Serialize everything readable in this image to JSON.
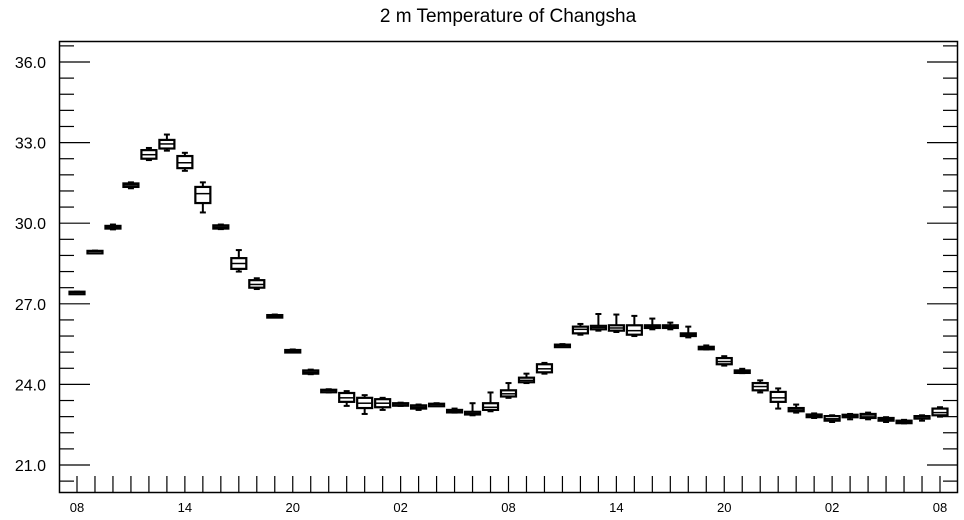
{
  "chart_data": {
    "type": "boxplot",
    "title": "2 m Temperature of Changsha",
    "xlabel": "",
    "ylabel": "",
    "ylim": [
      20.0,
      36.8
    ],
    "y_ticks": [
      "21.0",
      "24.0",
      "27.0",
      "30.0",
      "33.0",
      "36.0"
    ],
    "y_tick_values": [
      21.0,
      24.0,
      27.0,
      30.0,
      33.0,
      36.0
    ],
    "x_hours_start": 8,
    "x_hours_end": 56,
    "x_tick_hours": [
      8,
      14,
      20,
      26,
      32,
      38,
      44,
      50,
      56
    ],
    "x_tick_labels": [
      "08",
      "14",
      "20",
      "02",
      "08",
      "14",
      "20",
      "02",
      "08"
    ],
    "boxes": [
      {
        "hour": 8,
        "min": 27.4,
        "q1": 27.4,
        "median": 27.42,
        "q3": 27.45,
        "max": 27.45
      },
      {
        "hour": 9,
        "min": 28.9,
        "q1": 28.93,
        "median": 28.95,
        "q3": 28.97,
        "max": 28.98
      },
      {
        "hour": 10,
        "min": 29.77,
        "q1": 29.8,
        "median": 29.85,
        "q3": 29.9,
        "max": 29.95
      },
      {
        "hour": 11,
        "min": 31.3,
        "q1": 31.35,
        "median": 31.42,
        "q3": 31.48,
        "max": 31.52
      },
      {
        "hour": 12,
        "min": 32.35,
        "q1": 32.4,
        "median": 32.55,
        "q3": 32.72,
        "max": 32.8
      },
      {
        "hour": 13,
        "min": 32.7,
        "q1": 32.78,
        "median": 32.95,
        "q3": 33.1,
        "max": 33.3
      },
      {
        "hour": 14,
        "min": 31.95,
        "q1": 32.05,
        "median": 32.25,
        "q3": 32.5,
        "max": 32.62
      },
      {
        "hour": 15,
        "min": 30.4,
        "q1": 30.75,
        "median": 31.1,
        "q3": 31.35,
        "max": 31.52
      },
      {
        "hour": 16,
        "min": 29.78,
        "q1": 29.8,
        "median": 29.85,
        "q3": 29.92,
        "max": 29.95
      },
      {
        "hour": 17,
        "min": 28.2,
        "q1": 28.3,
        "median": 28.5,
        "q3": 28.7,
        "max": 29.0
      },
      {
        "hour": 18,
        "min": 27.55,
        "q1": 27.6,
        "median": 27.72,
        "q3": 27.88,
        "max": 27.95
      },
      {
        "hour": 19,
        "min": 26.5,
        "q1": 26.52,
        "median": 26.55,
        "q3": 26.58,
        "max": 26.6
      },
      {
        "hour": 20,
        "min": 25.2,
        "q1": 25.22,
        "median": 25.25,
        "q3": 25.28,
        "max": 25.3
      },
      {
        "hour": 21,
        "min": 24.38,
        "q1": 24.4,
        "median": 24.45,
        "q3": 24.52,
        "max": 24.55
      },
      {
        "hour": 22,
        "min": 23.7,
        "q1": 23.72,
        "median": 23.77,
        "q3": 23.8,
        "max": 23.82
      },
      {
        "hour": 23,
        "min": 23.2,
        "q1": 23.35,
        "median": 23.5,
        "q3": 23.68,
        "max": 23.75
      },
      {
        "hour": 24,
        "min": 22.9,
        "q1": 23.12,
        "median": 23.3,
        "q3": 23.5,
        "max": 23.6
      },
      {
        "hour": 25,
        "min": 23.05,
        "q1": 23.15,
        "median": 23.3,
        "q3": 23.45,
        "max": 23.5
      },
      {
        "hour": 26,
        "min": 23.2,
        "q1": 23.22,
        "median": 23.27,
        "q3": 23.3,
        "max": 23.32
      },
      {
        "hour": 27,
        "min": 23.05,
        "q1": 23.1,
        "median": 23.15,
        "q3": 23.22,
        "max": 23.25
      },
      {
        "hour": 28,
        "min": 23.2,
        "q1": 23.22,
        "median": 23.25,
        "q3": 23.28,
        "max": 23.3
      },
      {
        "hour": 29,
        "min": 22.95,
        "q1": 22.98,
        "median": 23.0,
        "q3": 23.05,
        "max": 23.1
      },
      {
        "hour": 30,
        "min": 22.85,
        "q1": 22.88,
        "median": 22.92,
        "q3": 22.98,
        "max": 23.3
      },
      {
        "hour": 31,
        "min": 23.0,
        "q1": 23.05,
        "median": 23.15,
        "q3": 23.3,
        "max": 23.7
      },
      {
        "hour": 32,
        "min": 23.5,
        "q1": 23.55,
        "median": 23.65,
        "q3": 23.78,
        "max": 24.05
      },
      {
        "hour": 33,
        "min": 24.05,
        "q1": 24.08,
        "median": 24.15,
        "q3": 24.25,
        "max": 24.4
      },
      {
        "hour": 34,
        "min": 24.4,
        "q1": 24.45,
        "median": 24.58,
        "q3": 24.75,
        "max": 24.8
      },
      {
        "hour": 35,
        "min": 25.4,
        "q1": 25.42,
        "median": 25.45,
        "q3": 25.48,
        "max": 25.5
      },
      {
        "hour": 36,
        "min": 25.85,
        "q1": 25.9,
        "median": 26.05,
        "q3": 26.15,
        "max": 26.25
      },
      {
        "hour": 37,
        "min": 26.0,
        "q1": 26.05,
        "median": 26.12,
        "q3": 26.18,
        "max": 26.62
      },
      {
        "hour": 38,
        "min": 25.95,
        "q1": 26.0,
        "median": 26.1,
        "q3": 26.2,
        "max": 26.6
      },
      {
        "hour": 39,
        "min": 25.8,
        "q1": 25.85,
        "median": 26.0,
        "q3": 26.2,
        "max": 26.55
      },
      {
        "hour": 40,
        "min": 26.05,
        "q1": 26.1,
        "median": 26.15,
        "q3": 26.2,
        "max": 26.45
      },
      {
        "hour": 41,
        "min": 26.05,
        "q1": 26.1,
        "median": 26.15,
        "q3": 26.2,
        "max": 26.3
      },
      {
        "hour": 42,
        "min": 25.75,
        "q1": 25.8,
        "median": 25.85,
        "q3": 25.9,
        "max": 26.15
      },
      {
        "hour": 43,
        "min": 25.3,
        "q1": 25.32,
        "median": 25.35,
        "q3": 25.4,
        "max": 25.45
      },
      {
        "hour": 44,
        "min": 24.7,
        "q1": 24.75,
        "median": 24.85,
        "q3": 24.98,
        "max": 25.05
      },
      {
        "hour": 45,
        "min": 24.42,
        "q1": 24.45,
        "median": 24.48,
        "q3": 24.52,
        "max": 24.58
      },
      {
        "hour": 46,
        "min": 23.7,
        "q1": 23.78,
        "median": 23.92,
        "q3": 24.05,
        "max": 24.15
      },
      {
        "hour": 47,
        "min": 23.1,
        "q1": 23.35,
        "median": 23.5,
        "q3": 23.72,
        "max": 23.85
      },
      {
        "hour": 48,
        "min": 22.95,
        "q1": 23.0,
        "median": 23.05,
        "q3": 23.12,
        "max": 23.25
      },
      {
        "hour": 49,
        "min": 22.75,
        "q1": 22.78,
        "median": 22.82,
        "q3": 22.88,
        "max": 22.92
      },
      {
        "hour": 50,
        "min": 22.6,
        "q1": 22.65,
        "median": 22.72,
        "q3": 22.82,
        "max": 22.85
      },
      {
        "hour": 51,
        "min": 22.7,
        "q1": 22.78,
        "median": 22.82,
        "q3": 22.87,
        "max": 22.9
      },
      {
        "hour": 52,
        "min": 22.7,
        "q1": 22.75,
        "median": 22.82,
        "q3": 22.9,
        "max": 22.95
      },
      {
        "hour": 53,
        "min": 22.6,
        "q1": 22.65,
        "median": 22.7,
        "q3": 22.75,
        "max": 22.78
      },
      {
        "hour": 54,
        "min": 22.55,
        "q1": 22.58,
        "median": 22.6,
        "q3": 22.65,
        "max": 22.68
      },
      {
        "hour": 55,
        "min": 22.65,
        "q1": 22.78,
        "median": 22.8,
        "q3": 22.82,
        "max": 22.85
      },
      {
        "hour": 56,
        "min": 22.8,
        "q1": 22.85,
        "median": 22.95,
        "q3": 23.1,
        "max": 23.15
      }
    ]
  }
}
